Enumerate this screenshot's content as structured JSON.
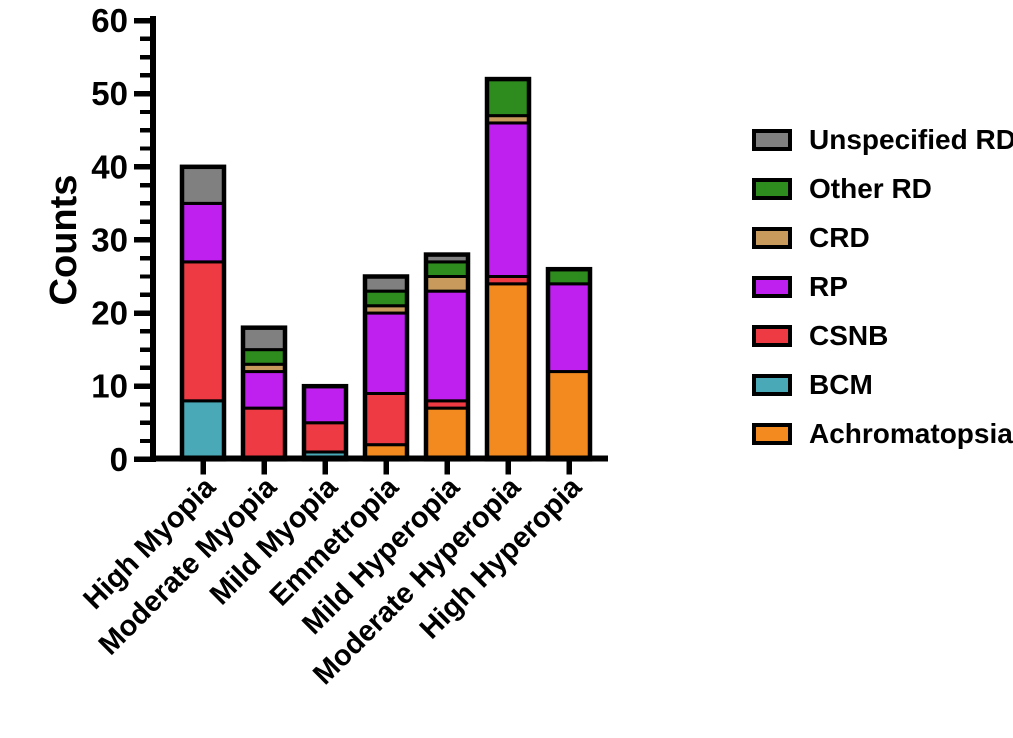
{
  "figure": {
    "background": "#ffffff",
    "axis_color": "#000000"
  },
  "chart_data": {
    "type": "bar",
    "variant": "stacked_vertical",
    "title": "",
    "xlabel": "",
    "ylabel": "Counts",
    "ylim": [
      0,
      60
    ],
    "yticks": [
      0,
      10,
      20,
      30,
      40,
      50,
      60
    ],
    "minor_tick_step": 2.5,
    "grid": "off",
    "categories": [
      "High Myopia",
      "Moderate Myopia",
      "Mild Myopia",
      "Emmetropia",
      "Mild Hyperopia",
      "Moderate Hyperopia",
      "High Hyperopia"
    ],
    "series": [
      {
        "name": "Achromatopsia",
        "color": "#f28a1f",
        "values": [
          0,
          0,
          0,
          2,
          7,
          24,
          12
        ]
      },
      {
        "name": "BCM",
        "color": "#4aa9b6",
        "values": [
          8,
          0,
          1,
          0,
          0,
          0,
          0
        ]
      },
      {
        "name": "CSNB",
        "color": "#ee3b43",
        "values": [
          19,
          7,
          4,
          7,
          1,
          1,
          0
        ]
      },
      {
        "name": "RP",
        "color": "#bf20f0",
        "values": [
          8,
          5,
          5,
          11,
          15,
          21,
          12
        ]
      },
      {
        "name": "CRD",
        "color": "#c89a5b",
        "values": [
          0,
          1,
          0,
          1,
          2,
          1,
          0
        ]
      },
      {
        "name": "Other RD",
        "color": "#2e8c1e",
        "values": [
          0,
          2,
          0,
          2,
          2,
          5,
          2
        ]
      },
      {
        "name": "Unspecified RD",
        "color": "#808080",
        "values": [
          5,
          3,
          0,
          2,
          1,
          0,
          0
        ]
      }
    ],
    "totals": [
      40,
      18,
      10,
      25,
      28,
      52,
      26
    ],
    "legend": {
      "position": "right",
      "entries": [
        {
          "label": "Unspecified RD",
          "color": "#808080"
        },
        {
          "label": "Other RD",
          "color": "#2e8c1e"
        },
        {
          "label": "CRD",
          "color": "#c89a5b"
        },
        {
          "label": "RP",
          "color": "#bf20f0"
        },
        {
          "label": "CSNB",
          "color": "#ee3b43"
        },
        {
          "label": "BCM",
          "color": "#4aa9b6"
        },
        {
          "label": "Achromatopsia",
          "color": "#f28a1f"
        }
      ]
    }
  }
}
